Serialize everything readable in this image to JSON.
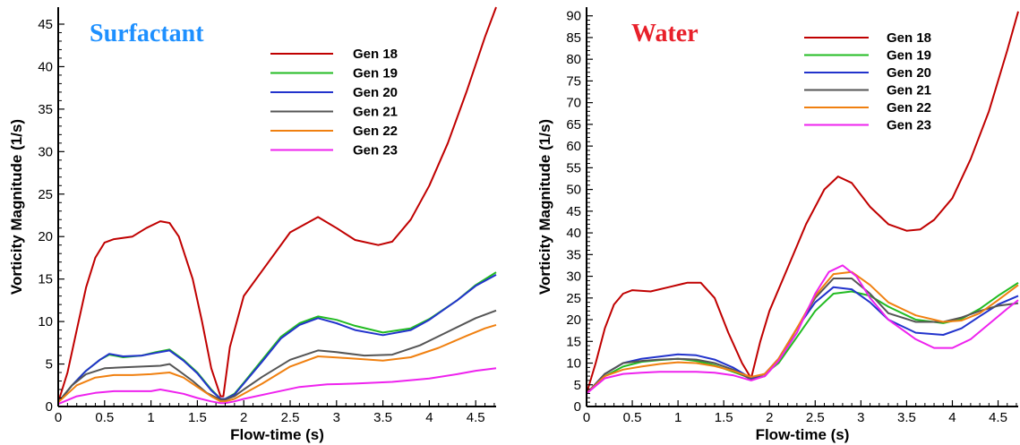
{
  "chart_data": [
    {
      "type": "line",
      "title": "Surfactant",
      "title_color": "#1E90FF",
      "xlabel": "Flow-time (s)",
      "ylabel": "Vorticity Magnitude (1/s)",
      "xlim": [
        0,
        4.72
      ],
      "ylim": [
        0,
        47
      ],
      "xticks": [
        0,
        0.5,
        1,
        1.5,
        2,
        2.5,
        3,
        3.5,
        4,
        4.5
      ],
      "xtick_labels": [
        "0",
        "0.5",
        "1",
        "1.5",
        "2",
        "2.5",
        "3",
        "3.5",
        "4",
        "4.5"
      ],
      "yticks": [
        0,
        5,
        10,
        15,
        20,
        25,
        30,
        35,
        40,
        45
      ],
      "ytick_labels": [
        "0",
        "5",
        "10",
        "15",
        "20",
        "25",
        "30",
        "35",
        "40",
        "45"
      ],
      "grid": false,
      "legend": "top-right",
      "series": [
        {
          "name": "Gen 18",
          "color": "#C00000",
          "x": [
            0,
            0.1,
            0.2,
            0.3,
            0.4,
            0.5,
            0.6,
            0.8,
            0.95,
            1.1,
            1.2,
            1.3,
            1.45,
            1.55,
            1.65,
            1.75,
            1.78,
            1.85,
            2.0,
            2.2,
            2.5,
            2.8,
            3.0,
            3.2,
            3.45,
            3.6,
            3.8,
            4.0,
            4.2,
            4.4,
            4.6,
            4.72
          ],
          "y": [
            0.5,
            4,
            9,
            14,
            17.5,
            19.3,
            19.7,
            20,
            21,
            21.8,
            21.6,
            20,
            15,
            10,
            4.5,
            1.2,
            1.2,
            7,
            13,
            16,
            20.5,
            22.3,
            21,
            19.6,
            19,
            19.4,
            22,
            26,
            31,
            37,
            43.5,
            47
          ]
        },
        {
          "name": "Gen 19",
          "color": "#22BB22",
          "x": [
            0,
            0.15,
            0.3,
            0.45,
            0.55,
            0.7,
            0.9,
            1.05,
            1.2,
            1.35,
            1.5,
            1.65,
            1.75,
            1.8,
            1.9,
            2.0,
            2.2,
            2.4,
            2.6,
            2.8,
            3.0,
            3.2,
            3.5,
            3.8,
            4.0,
            4.3,
            4.5,
            4.72
          ],
          "y": [
            0.5,
            2.5,
            4.2,
            5.5,
            6.1,
            5.8,
            6.0,
            6.4,
            6.7,
            5.5,
            4,
            2,
            0.9,
            0.9,
            1.5,
            2.8,
            5.5,
            8.2,
            9.8,
            10.6,
            10.2,
            9.5,
            8.7,
            9.2,
            10.3,
            12.5,
            14.3,
            15.8
          ]
        },
        {
          "name": "Gen 20",
          "color": "#2233CC",
          "x": [
            0,
            0.15,
            0.3,
            0.45,
            0.55,
            0.7,
            0.9,
            1.05,
            1.2,
            1.35,
            1.5,
            1.65,
            1.75,
            1.8,
            1.9,
            2.0,
            2.2,
            2.4,
            2.6,
            2.8,
            3.0,
            3.2,
            3.5,
            3.8,
            4.0,
            4.3,
            4.5,
            4.72
          ],
          "y": [
            0.5,
            2.5,
            4.2,
            5.5,
            6.2,
            5.9,
            6.0,
            6.3,
            6.6,
            5.4,
            3.9,
            1.9,
            0.9,
            0.9,
            1.4,
            2.7,
            5.3,
            8.0,
            9.6,
            10.4,
            9.8,
            9.0,
            8.4,
            9.0,
            10.2,
            12.5,
            14.2,
            15.5
          ]
        },
        {
          "name": "Gen 21",
          "color": "#555555",
          "x": [
            0,
            0.15,
            0.3,
            0.5,
            0.7,
            0.9,
            1.1,
            1.2,
            1.3,
            1.45,
            1.6,
            1.75,
            1.78,
            1.8,
            1.9,
            2.0,
            2.2,
            2.5,
            2.8,
            3.0,
            3.3,
            3.6,
            3.9,
            4.2,
            4.5,
            4.72
          ],
          "y": [
            0.5,
            2.5,
            3.8,
            4.5,
            4.6,
            4.7,
            4.8,
            5.0,
            4.2,
            3.0,
            1.6,
            0.8,
            0.8,
            0.8,
            1.2,
            2.0,
            3.5,
            5.5,
            6.6,
            6.4,
            6.0,
            6.1,
            7.2,
            8.8,
            10.4,
            11.3
          ]
        },
        {
          "name": "Gen 22",
          "color": "#F08010",
          "x": [
            0,
            0.2,
            0.4,
            0.6,
            0.8,
            1.0,
            1.2,
            1.35,
            1.5,
            1.65,
            1.75,
            1.8,
            1.9,
            2.0,
            2.2,
            2.5,
            2.8,
            3.1,
            3.5,
            3.8,
            4.1,
            4.4,
            4.6,
            4.72
          ],
          "y": [
            0.5,
            2.5,
            3.4,
            3.7,
            3.7,
            3.8,
            4.0,
            3.4,
            2.3,
            1.2,
            0.6,
            0.6,
            0.9,
            1.5,
            2.7,
            4.7,
            5.9,
            5.7,
            5.4,
            5.8,
            6.9,
            8.3,
            9.2,
            9.6
          ]
        },
        {
          "name": "Gen 23",
          "color": "#EE22EE",
          "x": [
            0,
            0.2,
            0.4,
            0.6,
            0.8,
            1.0,
            1.1,
            1.2,
            1.35,
            1.5,
            1.65,
            1.75,
            1.8,
            1.9,
            2.0,
            2.3,
            2.6,
            2.9,
            3.2,
            3.6,
            4.0,
            4.3,
            4.5,
            4.72
          ],
          "y": [
            0.3,
            1.2,
            1.6,
            1.8,
            1.8,
            1.8,
            2.0,
            1.8,
            1.5,
            1.0,
            0.6,
            0.4,
            0.4,
            0.6,
            0.9,
            1.6,
            2.3,
            2.6,
            2.7,
            2.9,
            3.3,
            3.8,
            4.2,
            4.5
          ]
        }
      ]
    },
    {
      "type": "line",
      "title": "Water",
      "title_color": "#E8202A",
      "xlabel": "Flow-time (s)",
      "ylabel": "Vorticity Magnitude (1/s)",
      "xlim": [
        0,
        4.72
      ],
      "ylim": [
        0,
        92
      ],
      "xticks": [
        0,
        0.5,
        1,
        1.5,
        2,
        2.5,
        3,
        3.5,
        4,
        4.5
      ],
      "xtick_labels": [
        "0",
        "0.5",
        "1",
        "1.5",
        "2",
        "2.5",
        "3",
        "3.5",
        "4",
        "4.5"
      ],
      "yticks": [
        0,
        5,
        10,
        15,
        20,
        25,
        30,
        35,
        40,
        45,
        50,
        55,
        60,
        65,
        70,
        75,
        80,
        85,
        90
      ],
      "ytick_labels": [
        "0",
        "5",
        "10",
        "15",
        "20",
        "25",
        "30",
        "35",
        "40",
        "45",
        "50",
        "55",
        "60",
        "65",
        "70",
        "75",
        "80",
        "85",
        "90"
      ],
      "grid": false,
      "legend": "top-right",
      "series": [
        {
          "name": "Gen 18",
          "color": "#C00000",
          "x": [
            0,
            0.1,
            0.2,
            0.3,
            0.4,
            0.5,
            0.7,
            0.9,
            1.1,
            1.25,
            1.4,
            1.55,
            1.7,
            1.8,
            1.9,
            2.0,
            2.2,
            2.4,
            2.6,
            2.75,
            2.9,
            3.1,
            3.3,
            3.5,
            3.65,
            3.8,
            4.0,
            4.2,
            4.4,
            4.6,
            4.72
          ],
          "y": [
            3,
            10,
            18,
            23.5,
            26,
            26.8,
            26.5,
            27.5,
            28.5,
            28.5,
            25,
            17,
            10,
            6.5,
            15,
            22,
            32,
            42,
            50,
            53,
            51.5,
            46,
            42,
            40.5,
            40.8,
            43,
            48,
            57,
            68,
            82,
            91
          ]
        },
        {
          "name": "Gen 19",
          "color": "#22BB22",
          "x": [
            0,
            0.2,
            0.4,
            0.6,
            0.8,
            1.0,
            1.2,
            1.4,
            1.6,
            1.8,
            1.95,
            2.1,
            2.3,
            2.5,
            2.7,
            2.9,
            3.1,
            3.3,
            3.6,
            3.9,
            4.1,
            4.3,
            4.5,
            4.72
          ],
          "y": [
            3,
            7,
            9.2,
            10.3,
            10.7,
            11,
            10.5,
            9.5,
            8,
            6.5,
            7.5,
            10,
            16,
            22,
            26,
            26.5,
            25.5,
            23,
            20,
            19.2,
            20.2,
            22.5,
            25.5,
            28.5
          ]
        },
        {
          "name": "Gen 20",
          "color": "#2233CC",
          "x": [
            0,
            0.2,
            0.4,
            0.6,
            0.8,
            1.0,
            1.2,
            1.4,
            1.6,
            1.8,
            1.95,
            2.1,
            2.3,
            2.5,
            2.7,
            2.9,
            3.1,
            3.3,
            3.6,
            3.9,
            4.1,
            4.3,
            4.5,
            4.72
          ],
          "y": [
            3,
            7.5,
            10,
            11,
            11.5,
            12,
            11.8,
            10.8,
            9,
            6.5,
            7.5,
            11,
            18,
            24,
            27.5,
            27,
            24,
            20,
            17,
            16.5,
            18,
            20.8,
            23.5,
            25.5
          ]
        },
        {
          "name": "Gen 21",
          "color": "#555555",
          "x": [
            0,
            0.2,
            0.4,
            0.6,
            0.8,
            1.0,
            1.2,
            1.4,
            1.6,
            1.8,
            1.95,
            2.1,
            2.3,
            2.5,
            2.7,
            2.9,
            3.1,
            3.3,
            3.6,
            3.9,
            4.1,
            4.3,
            4.5,
            4.72
          ],
          "y": [
            3,
            7.5,
            10,
            10.5,
            10.8,
            11,
            10.8,
            10,
            8.5,
            6.2,
            7,
            10.5,
            18,
            25,
            29.5,
            29.5,
            26,
            21.5,
            19.5,
            19.5,
            20.5,
            22,
            23.2,
            23.8
          ]
        },
        {
          "name": "Gen 22",
          "color": "#F08010",
          "x": [
            0,
            0.2,
            0.4,
            0.6,
            0.8,
            1.0,
            1.2,
            1.4,
            1.6,
            1.8,
            1.95,
            2.1,
            2.3,
            2.5,
            2.7,
            2.9,
            3.1,
            3.3,
            3.6,
            3.9,
            4.1,
            4.3,
            4.5,
            4.72
          ],
          "y": [
            3,
            7,
            8.5,
            9.2,
            9.8,
            10.2,
            10,
            9.3,
            8.2,
            6.8,
            7.5,
            11,
            18,
            25.5,
            30.5,
            31,
            28,
            24,
            21,
            19.5,
            19.8,
            21.5,
            24.5,
            28
          ]
        },
        {
          "name": "Gen 23",
          "color": "#EE22EE",
          "x": [
            0,
            0.2,
            0.4,
            0.6,
            0.8,
            1.0,
            1.2,
            1.4,
            1.6,
            1.8,
            1.95,
            2.1,
            2.3,
            2.5,
            2.65,
            2.8,
            2.95,
            3.1,
            3.3,
            3.6,
            3.8,
            4.0,
            4.2,
            4.4,
            4.6,
            4.72
          ],
          "y": [
            3,
            6.5,
            7.5,
            7.8,
            8,
            8,
            8,
            7.8,
            7.2,
            6,
            7,
            10.5,
            17,
            26,
            31,
            32.5,
            30,
            25,
            20,
            15.5,
            13.5,
            13.5,
            15.5,
            19,
            22.5,
            24.5
          ]
        }
      ]
    }
  ]
}
